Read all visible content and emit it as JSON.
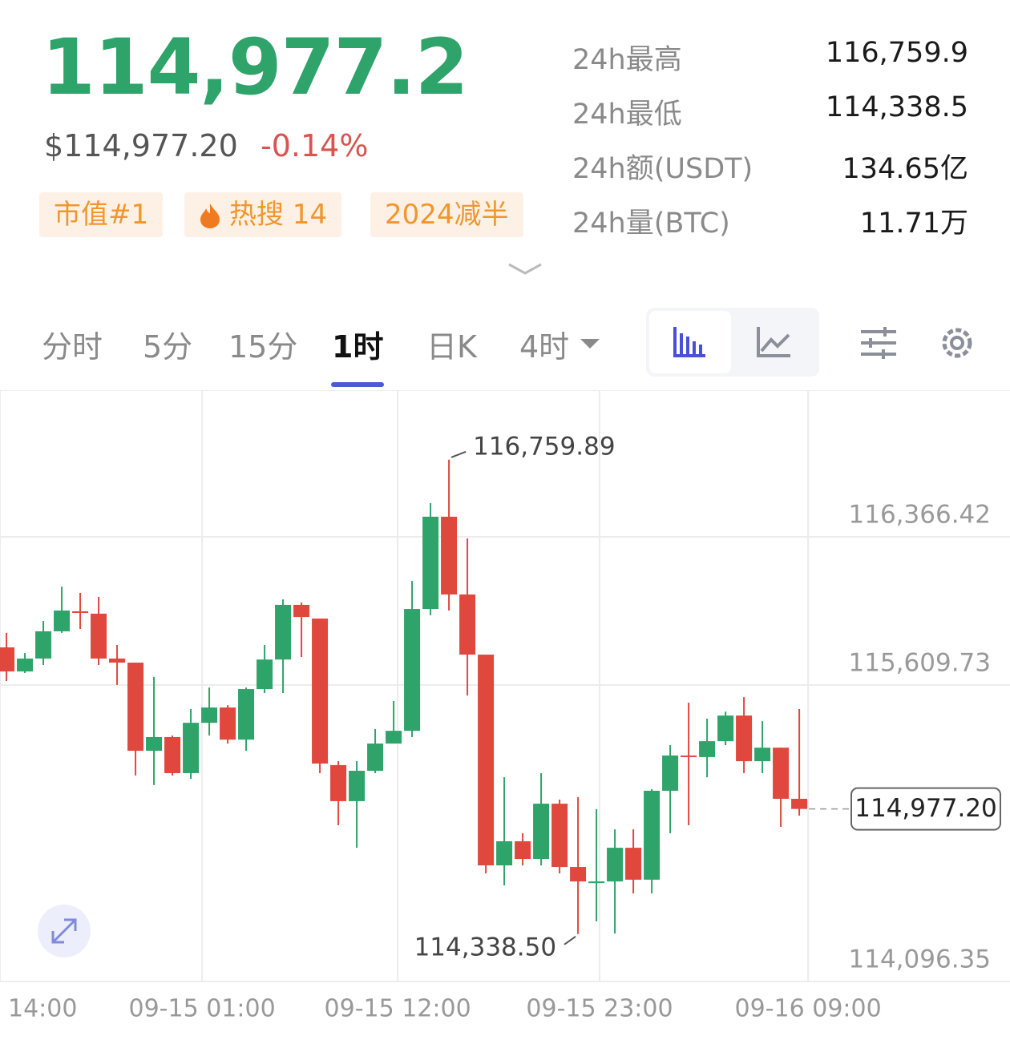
{
  "header": {
    "price": "114,977.2",
    "usd_price": "$114,977.20",
    "change": "-0.14%",
    "tags": [
      "市值#1",
      "热搜 14",
      "2024减半"
    ],
    "stats": [
      [
        "24h最高",
        "116,759.9"
      ],
      [
        "24h最低",
        "114,338.5"
      ],
      [
        "24h额(USDT)",
        "134.65亿"
      ],
      [
        "24h量(BTC)",
        "11.71万"
      ]
    ]
  },
  "tabs": [
    "分时",
    "5分",
    "15分",
    "1时",
    "日K",
    "4时"
  ],
  "chart_data": {
    "type": "candlestick",
    "up_color": "#2ea36a",
    "down_color": "#e0473d",
    "open": [
      115802,
      115679,
      115745,
      115884,
      115986,
      115974,
      115745,
      115724,
      115274,
      115344,
      115160,
      115417,
      115495,
      115331,
      115589,
      115740,
      116019,
      115949,
      115201,
      115017,
      115172,
      115311,
      115376,
      115998,
      116469,
      116072,
      115765,
      114689,
      114812,
      114722,
      115004,
      114681,
      114607,
      114607,
      114779,
      114616,
      115070,
      115250,
      115242,
      115323,
      115454,
      115221,
      115290,
      115029
    ],
    "high": [
      115876,
      115773,
      115937,
      116112,
      116080,
      116060,
      115814,
      115724,
      115651,
      115352,
      115487,
      115597,
      115507,
      115597,
      115814,
      116047,
      116031,
      115949,
      115221,
      115221,
      115385,
      115528,
      116141,
      116538,
      116759.89,
      116358,
      115765,
      115139,
      114853,
      115160,
      115025,
      115037,
      114976,
      114873,
      114873,
      115078,
      115303,
      115520,
      115438,
      115474,
      115548,
      115425,
      115290,
      115487
    ],
    "low": [
      115630,
      115671,
      115712,
      115876,
      115896,
      115712,
      115610,
      115148,
      115099,
      115148,
      115131,
      115352,
      115311,
      115274,
      115569,
      115569,
      115753,
      115160,
      114894,
      114779,
      115160,
      115311,
      115344,
      115966,
      115990,
      115556,
      114648,
      114587,
      114689,
      114689,
      114648,
      114338.5,
      114403,
      114341,
      114546,
      114546,
      114853,
      114894,
      115139,
      115303,
      115160,
      115160,
      114886,
      114943
    ],
    "close": [
      115679,
      115745,
      115884,
      115990,
      115978,
      115745,
      115724,
      115274,
      115344,
      115160,
      115417,
      115495,
      115331,
      115589,
      115740,
      116019,
      115957,
      115209,
      115017,
      115172,
      115311,
      115376,
      115998,
      116469,
      116072,
      115765,
      114689,
      114812,
      114722,
      115004,
      114681,
      114607,
      114607,
      114779,
      114616,
      115070,
      115250,
      115246,
      115323,
      115454,
      115221,
      115290,
      115029,
      114977.2
    ],
    "ylim": [
      114096.35,
      117114.93
    ],
    "yticks": [
      {
        "value": 114096.35,
        "label": "114,096.35"
      },
      {
        "value": 115609.73,
        "label": "115,609.73"
      },
      {
        "value": 116366.42,
        "label": "116,366.42"
      }
    ],
    "xlim": [
      -0.35,
      54.43
    ],
    "xticks": [
      {
        "value": -0.35,
        "label": "14:00"
      },
      {
        "value": 10.61,
        "label": "09-15 01:00"
      },
      {
        "value": 21.22,
        "label": "09-15 12:00"
      },
      {
        "value": 32.17,
        "label": "09-15 23:00"
      },
      {
        "value": 43.48,
        "label": "09-16 09:00"
      }
    ],
    "high_label": "116,759.89",
    "low_label": "114,338.50",
    "last_label": "114,977.20",
    "grid": true
  }
}
